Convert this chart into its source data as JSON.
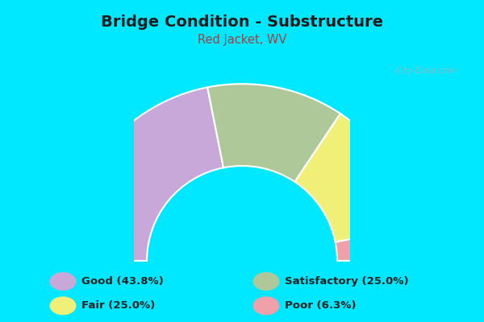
{
  "title": "Bridge Condition - Substructure",
  "subtitle": "Red Jacket, WV",
  "title_color": "#1a1a1a",
  "subtitle_color": "#994444",
  "bg_color": "#00e8ff",
  "chart_bg_color": "#e8f5e2",
  "segments": [
    {
      "label": "Good (43.8%)",
      "value": 43.8,
      "color": "#c8a8d8"
    },
    {
      "label": "Satisfactory (25.0%)",
      "value": 25.0,
      "color": "#afc89a"
    },
    {
      "label": "Fair (25.0%)",
      "value": 25.0,
      "color": "#f0f078"
    },
    {
      "label": "Poor (6.3%)",
      "value": 6.3,
      "color": "#f0a0a8"
    }
  ],
  "legend_items": [
    {
      "label": "Good (43.8%)",
      "color": "#c8a8d8"
    },
    {
      "label": "Satisfactory (25.0%)",
      "color": "#afc89a"
    },
    {
      "label": "Fair (25.0%)",
      "color": "#f0f078"
    },
    {
      "label": "Poor (6.3%)",
      "color": "#f0a0a8"
    }
  ],
  "watermark": " City-Data.com",
  "donut_width": 0.38,
  "outer_r": 0.82,
  "figsize": [
    6.0,
    4.0
  ],
  "dpi": 100
}
